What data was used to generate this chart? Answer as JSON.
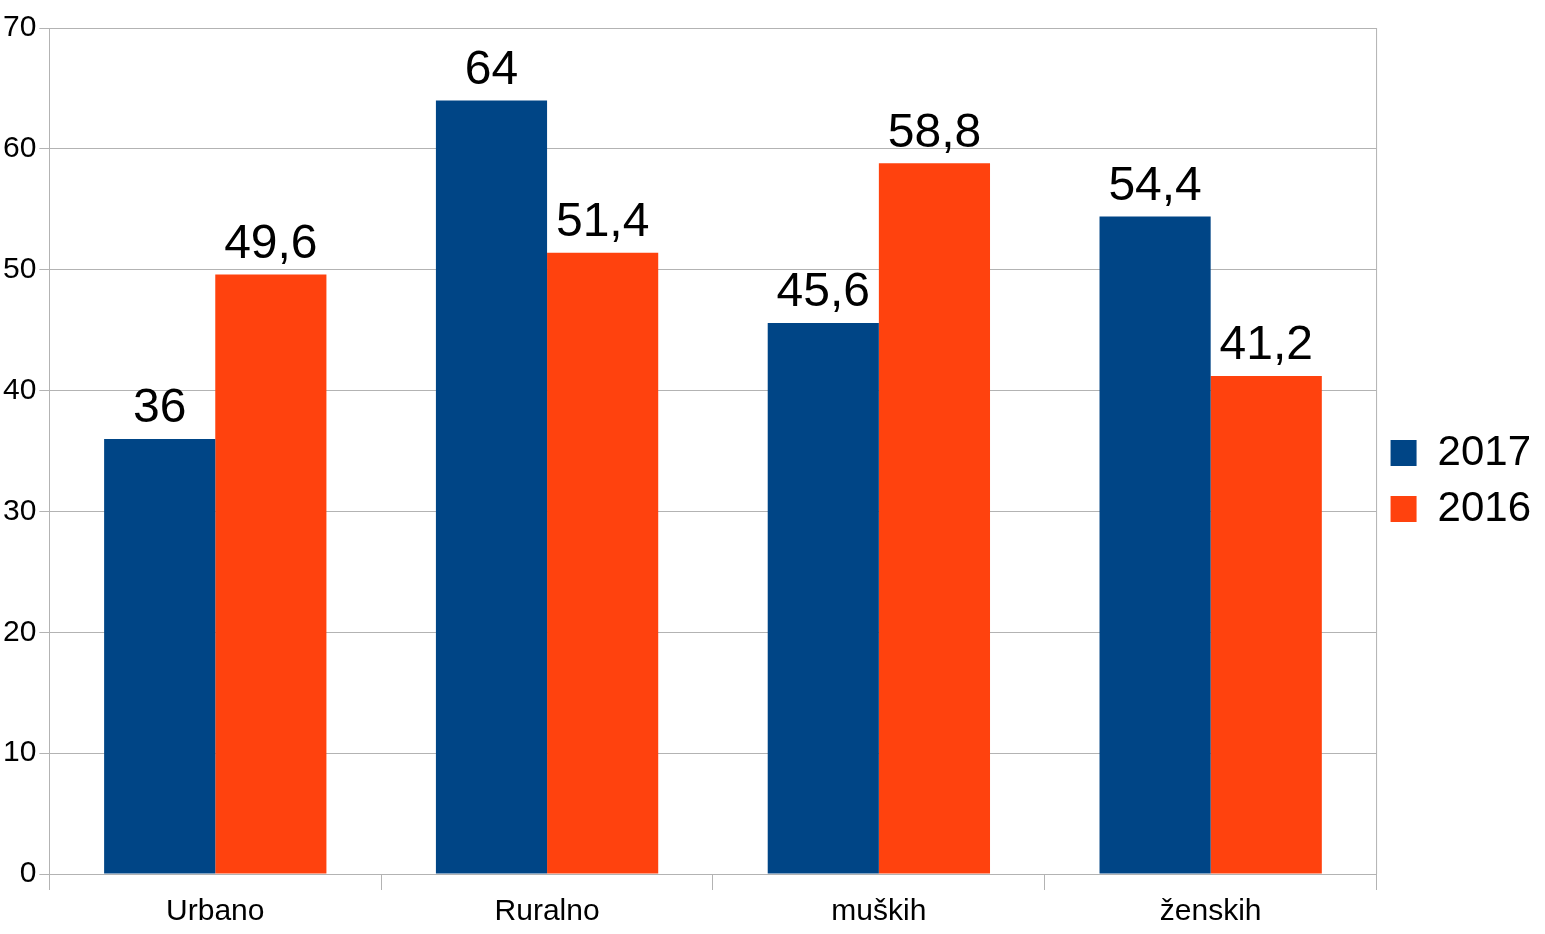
{
  "chart_data": {
    "type": "bar",
    "categories": [
      "Urbano",
      "Ruralno",
      "muških",
      "ženskih"
    ],
    "series": [
      {
        "name": "2017",
        "color": "#004586",
        "values": [
          36,
          64,
          45.6,
          54.4
        ],
        "value_labels": [
          "36",
          "64",
          "45,6",
          "54,4"
        ]
      },
      {
        "name": "2016",
        "color": "#ff420e",
        "values": [
          49.6,
          51.4,
          58.8,
          41.2
        ],
        "value_labels": [
          "49,6",
          "51,4",
          "58,8",
          "41,2"
        ]
      }
    ],
    "ylim": [
      0,
      70
    ],
    "yticks": [
      0,
      10,
      20,
      30,
      40,
      50,
      60,
      70
    ],
    "grid": "y",
    "legend": "right"
  }
}
